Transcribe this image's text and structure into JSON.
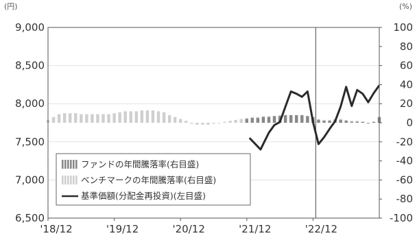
{
  "chart_data": {
    "type": "bar",
    "title": "",
    "left_axis": {
      "unit": "(円)",
      "ticks": [
        "9,000",
        "8,500",
        "8,000",
        "7,500",
        "7,000",
        "6,500"
      ],
      "range": [
        6500,
        9000
      ]
    },
    "right_axis": {
      "unit": "(%)",
      "ticks": [
        "100",
        "80",
        "60",
        "40",
        "20",
        "0",
        "-20",
        "-40",
        "-60",
        "-80",
        "-100"
      ],
      "range": [
        -100,
        100
      ]
    },
    "x_axis": {
      "ticks": [
        "'18/12",
        "'19/12",
        "'20/12",
        "'21/12",
        "'22/12"
      ],
      "range_months": [
        0,
        60
      ],
      "tick_months": [
        0,
        12,
        24,
        36,
        48
      ]
    },
    "reference_line_month": 48.5,
    "legend": {
      "fund": "ファンドの年間騰落率(右目盛)",
      "benchmark": "ベンチマークの年間騰落率(右目盛)",
      "nav": "基準価額(分配金再投資)(左目盛)"
    },
    "colors": {
      "fund_bar": "#888888",
      "benchmark_bar": "#cfcfcf",
      "nav_line": "#2b2b2b",
      "reference_line": "#666666",
      "frame": "#555555"
    },
    "series": [
      {
        "name": "ファンドの年間騰落率(右目盛)",
        "axis": "right",
        "months": [
          36,
          37,
          38,
          39,
          40,
          41,
          42,
          43,
          44,
          45,
          46,
          47,
          48,
          49,
          50,
          51,
          52,
          53,
          54,
          55,
          56,
          57,
          58,
          59,
          60
        ],
        "values": [
          4,
          5,
          5,
          6,
          6,
          7,
          7,
          8,
          8,
          8,
          8,
          7,
          6,
          3,
          2,
          2,
          3,
          3,
          2,
          1,
          1,
          1,
          0,
          1,
          6
        ]
      },
      {
        "name": "ベンチマークの年間騰落率(右目盛)",
        "axis": "right",
        "months": [
          0,
          1,
          2,
          3,
          4,
          5,
          6,
          7,
          8,
          9,
          10,
          11,
          12,
          13,
          14,
          15,
          16,
          17,
          18,
          19,
          20,
          21,
          22,
          23,
          24,
          25,
          26,
          27,
          28,
          29,
          30,
          31,
          32,
          33,
          34,
          35,
          36,
          37,
          38,
          39,
          40,
          41,
          42,
          43,
          44,
          45,
          46,
          47,
          48,
          49,
          50,
          51,
          52,
          53,
          54,
          55,
          56,
          57,
          58,
          59,
          60
        ],
        "values": [
          3,
          6,
          9,
          10,
          10,
          10,
          9,
          9,
          9,
          9,
          9,
          9,
          10,
          11,
          12,
          12,
          12,
          13,
          13,
          13,
          12,
          11,
          8,
          6,
          4,
          2,
          -1,
          -2,
          -2,
          -2,
          -1,
          0,
          1,
          2,
          3,
          4,
          5,
          6,
          6,
          7,
          7,
          7,
          8,
          8,
          8,
          8,
          8,
          7,
          6,
          4,
          3,
          3,
          4,
          4,
          3,
          2,
          2,
          1,
          0,
          1,
          2
        ]
      },
      {
        "name": "基準価額(分配金再投資)(左目盛)",
        "axis": "left",
        "months": [
          36.5,
          38.5,
          40,
          41,
          42,
          43,
          44,
          45,
          46,
          47,
          48,
          49,
          50,
          51,
          52,
          53,
          54,
          55,
          56,
          57,
          58,
          59,
          60
        ],
        "values": [
          7550,
          7400,
          7620,
          7720,
          7760,
          7960,
          8160,
          8130,
          8090,
          8160,
          7760,
          7470,
          7560,
          7670,
          7770,
          7960,
          8220,
          7970,
          8180,
          8130,
          8020,
          8140,
          8240
        ]
      }
    ]
  }
}
